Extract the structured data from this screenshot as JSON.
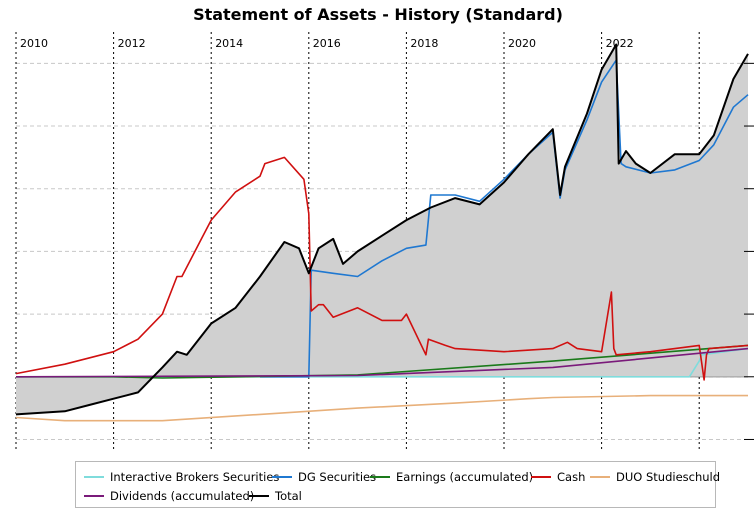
{
  "chart_data": {
    "type": "line",
    "title": "Statement of Assets - History (Standard)",
    "xlabel": "",
    "ylabel": "",
    "x_tick_labels": [
      "2010",
      "2012",
      "2014",
      "2016",
      "2018",
      "2020",
      "2022"
    ],
    "xlim": [
      2009.0,
      2024.0
    ],
    "y_tick_labels": [],
    "grid": true,
    "legend_position": "bottom",
    "series": [
      {
        "name": "Interactive Brokers Securities",
        "color": "#7fdcdc",
        "x": [
          2009.0,
          2022.8,
          2023.0,
          2023.05,
          2024.0
        ],
        "y": [
          0,
          0,
          0.25,
          0.35,
          0.45
        ]
      },
      {
        "name": "DG Securities",
        "color": "#1f78d1",
        "x": [
          2014.0,
          2015.0,
          2015.05,
          2015.5,
          2016.0,
          2016.5,
          2017.0,
          2017.4,
          2017.5,
          2018.0,
          2018.5,
          2019.0,
          2019.5,
          2020.0,
          2020.15,
          2020.25,
          2020.7,
          2021.0,
          2021.3,
          2021.4,
          2021.5,
          2022.0,
          2022.5,
          2023.0,
          2023.3,
          2023.7,
          2024.0
        ],
        "y": [
          0,
          0,
          1.7,
          1.65,
          1.6,
          1.85,
          2.05,
          2.1,
          2.9,
          2.9,
          2.8,
          3.15,
          3.55,
          3.9,
          2.85,
          3.3,
          4.1,
          4.7,
          5.05,
          3.4,
          3.35,
          3.25,
          3.3,
          3.45,
          3.7,
          4.3,
          4.5
        ]
      },
      {
        "name": "Earnings (accumulated)",
        "color": "#1a7a1a",
        "x": [
          2009.0,
          2011.0,
          2012.0,
          2016.0,
          2020.0,
          2024.0
        ],
        "y": [
          0,
          0,
          -0.02,
          0.03,
          0.25,
          0.5
        ]
      },
      {
        "name": "Cash",
        "color": "#d01010",
        "x": [
          2009.0,
          2010.0,
          2011.0,
          2011.5,
          2012.0,
          2012.3,
          2012.4,
          2012.8,
          2013.0,
          2013.5,
          2014.0,
          2014.1,
          2014.5,
          2014.9,
          2015.0,
          2015.05,
          2015.2,
          2015.3,
          2015.5,
          2016.0,
          2016.5,
          2016.9,
          2017.0,
          2017.4,
          2017.45,
          2017.8,
          2018.0,
          2019.0,
          2020.0,
          2020.3,
          2020.5,
          2021.0,
          2021.2,
          2021.25,
          2021.3,
          2022.0,
          2022.5,
          2023.0,
          2023.1,
          2023.15,
          2023.2,
          2024.0
        ],
        "y": [
          0.05,
          0.2,
          0.4,
          0.6,
          1.0,
          1.6,
          1.6,
          2.2,
          2.5,
          2.95,
          3.2,
          3.4,
          3.5,
          3.15,
          2.6,
          1.05,
          1.15,
          1.15,
          0.95,
          1.1,
          0.9,
          0.9,
          1.0,
          0.35,
          0.6,
          0.5,
          0.45,
          0.4,
          0.45,
          0.55,
          0.45,
          0.4,
          1.35,
          0.45,
          0.35,
          0.4,
          0.45,
          0.5,
          -0.05,
          0.35,
          0.45,
          0.5
        ]
      },
      {
        "name": "DUO Studieschuld",
        "color": "#e8b07a",
        "x": [
          2009.0,
          2010.0,
          2012.0,
          2014.0,
          2016.0,
          2018.0,
          2019.5,
          2020.0,
          2022.0,
          2024.0
        ],
        "y": [
          -0.65,
          -0.7,
          -0.7,
          -0.6,
          -0.5,
          -0.42,
          -0.35,
          -0.33,
          -0.3,
          -0.3
        ]
      },
      {
        "name": "Dividends (accumulated)",
        "color": "#7a1a7a",
        "x": [
          2009.0,
          2016.0,
          2020.0,
          2024.0
        ],
        "y": [
          0,
          0.02,
          0.15,
          0.45
        ]
      },
      {
        "name": "Total",
        "color": "#000000",
        "x": [
          2009.0,
          2010.0,
          2010.5,
          2011.0,
          2011.5,
          2012.0,
          2012.3,
          2012.5,
          2013.0,
          2013.5,
          2014.0,
          2014.5,
          2014.8,
          2015.0,
          2015.2,
          2015.5,
          2015.7,
          2016.0,
          2016.5,
          2017.0,
          2017.5,
          2018.0,
          2018.5,
          2019.0,
          2019.5,
          2020.0,
          2020.15,
          2020.25,
          2020.7,
          2021.0,
          2021.3,
          2021.35,
          2021.5,
          2021.7,
          2022.0,
          2022.5,
          2023.0,
          2023.3,
          2023.7,
          2024.0
        ],
        "y": [
          -0.6,
          -0.55,
          -0.45,
          -0.35,
          -0.25,
          0.15,
          0.4,
          0.35,
          0.85,
          1.1,
          1.6,
          2.15,
          2.05,
          1.65,
          2.05,
          2.2,
          1.8,
          2.0,
          2.25,
          2.5,
          2.7,
          2.85,
          2.75,
          3.1,
          3.55,
          3.95,
          2.9,
          3.35,
          4.2,
          4.9,
          5.3,
          3.4,
          3.6,
          3.4,
          3.25,
          3.55,
          3.55,
          3.85,
          4.75,
          5.15
        ]
      }
    ]
  }
}
